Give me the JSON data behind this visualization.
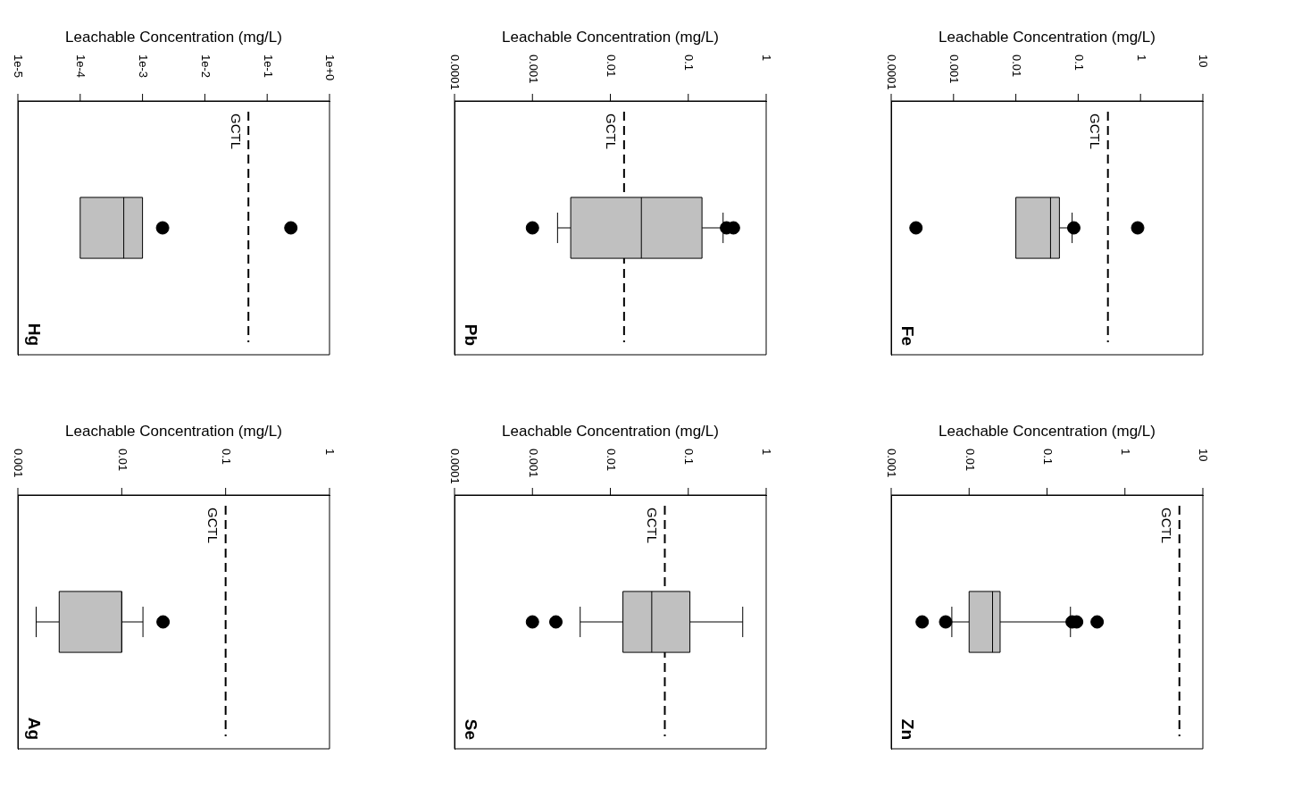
{
  "chart_data": [
    {
      "type": "box",
      "title": "Hg",
      "xlabel": "Leachable Concentration (mg/L)",
      "orientation": "horizontal",
      "categories": [
        null
      ],
      "color": "#c0c0c0",
      "log": "x",
      "xlim": [
        1e-05,
        1
      ],
      "xticks": [
        {
          "value": 1e-05,
          "label": "1e-5"
        },
        {
          "value": 0.0001,
          "label": "1e-4"
        },
        {
          "value": 0.001,
          "label": "1e-3"
        },
        {
          "value": 0.01,
          "label": "1e-2"
        },
        {
          "value": 0.1,
          "label": "1e-1"
        },
        {
          "value": 1,
          "label": "1e+0"
        }
      ],
      "tick_labels": "x",
      "boxes": [
        {
          "low": 0.0001,
          "q1": 0.0001,
          "median": 0.0005,
          "q3": 0.001,
          "high": 0.001,
          "outliers": [
            0.0021,
            0.24
          ]
        }
      ],
      "ref_lines": [
        {
          "axis": "x",
          "value": 0.05,
          "label": "GCTL",
          "line_style": "dashed",
          "color": "#000000"
        }
      ]
    },
    {
      "type": "box",
      "title": "Pb",
      "xlabel": "Leachable Concentration (mg/L)",
      "orientation": "horizontal",
      "categories": [
        null
      ],
      "color": "#c0c0c0",
      "log": "x",
      "xlim": [
        0.0001,
        1
      ],
      "xticks": [
        0.0001,
        0.001,
        0.01,
        0.1,
        1
      ],
      "tick_labels": "x",
      "boxes": [
        {
          "low": 0.0021,
          "q1": 0.0031,
          "median": 0.025,
          "q3": 0.15,
          "high": 0.28,
          "outliers": [
            0.001,
            0.31,
            0.38
          ]
        }
      ],
      "ref_lines": [
        {
          "axis": "x",
          "value": 0.015,
          "label": "GCTL",
          "line_style": "dashed",
          "color": "#000000"
        }
      ]
    },
    {
      "type": "box",
      "title": "Fe",
      "xlabel": "Leachable Concentration (mg/L)",
      "orientation": "horizontal",
      "categories": [
        null
      ],
      "color": "#c0c0c0",
      "log": "x",
      "xlim": [
        0.0001,
        10
      ],
      "xticks": [
        0.0001,
        0.001,
        0.01,
        0.1,
        1,
        10
      ],
      "tick_labels": "x",
      "boxes": [
        {
          "low": 0.01,
          "q1": 0.01,
          "median": 0.036,
          "q3": 0.05,
          "high": 0.08,
          "outliers": [
            0.00025,
            0.085,
            0.9
          ]
        }
      ],
      "ref_lines": [
        {
          "axis": "x",
          "value": 0.3,
          "label": "GCTL",
          "line_style": "dashed",
          "color": "#000000"
        }
      ]
    },
    {
      "type": "box",
      "title": "Ag",
      "xlabel": "Leachable Concentration (mg/L)",
      "orientation": "horizontal",
      "categories": [
        null
      ],
      "color": "#c0c0c0",
      "log": "x",
      "xlim": [
        0.001,
        1
      ],
      "xticks": [
        0.001,
        0.01,
        0.1,
        1
      ],
      "tick_labels": "x",
      "boxes": [
        {
          "low": 0.0015,
          "q1": 0.0025,
          "median": 0.01,
          "q3": 0.01,
          "high": 0.016,
          "outliers": [
            0.025
          ]
        }
      ],
      "ref_lines": [
        {
          "axis": "x",
          "value": 0.1,
          "label": "GCTL",
          "line_style": "dashed",
          "color": "#000000"
        }
      ]
    },
    {
      "type": "box",
      "title": "Se",
      "xlabel": "Leachable Concentration (mg/L)",
      "orientation": "horizontal",
      "categories": [
        null
      ],
      "color": "#c0c0c0",
      "log": "x",
      "xlim": [
        0.0001,
        1
      ],
      "xticks": [
        0.0001,
        0.001,
        0.01,
        0.1,
        1
      ],
      "tick_labels": "x",
      "boxes": [
        {
          "low": 0.0041,
          "q1": 0.0145,
          "median": 0.034,
          "q3": 0.105,
          "high": 0.5,
          "outliers": [
            0.001,
            0.002
          ]
        }
      ],
      "ref_lines": [
        {
          "axis": "x",
          "value": 0.05,
          "label": "GCTL",
          "line_style": "dashed",
          "color": "#000000"
        }
      ]
    },
    {
      "type": "box",
      "title": "Zn",
      "xlabel": "Leachable Concentration (mg/L)",
      "orientation": "horizontal",
      "categories": [
        null
      ],
      "color": "#c0c0c0",
      "log": "x",
      "xlim": [
        0.001,
        10
      ],
      "xticks": [
        0.001,
        0.01,
        0.1,
        1,
        10
      ],
      "tick_labels": "x",
      "boxes": [
        {
          "low": 0.006,
          "q1": 0.01,
          "median": 0.02,
          "q3": 0.025,
          "high": 0.2,
          "outliers": [
            0.0025,
            0.005,
            0.21,
            0.24,
            0.44
          ]
        }
      ],
      "ref_lines": [
        {
          "axis": "x",
          "value": 5,
          "label": "GCTL",
          "line_style": "dashed",
          "color": "#000000"
        }
      ]
    }
  ]
}
